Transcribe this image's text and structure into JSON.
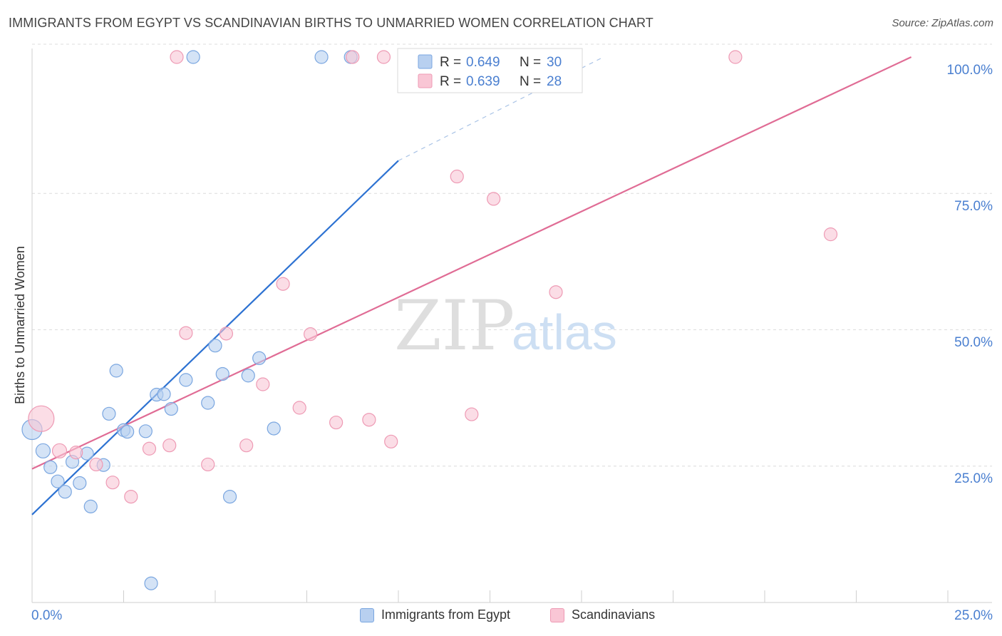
{
  "title": "IMMIGRANTS FROM EGYPT VS SCANDINAVIAN BIRTHS TO UNMARRIED WOMEN CORRELATION CHART",
  "source": "Source: ZipAtlas.com",
  "watermark": {
    "zip": "ZIP",
    "atlas": "atlas"
  },
  "colors": {
    "blue_fill": "#b8d0f0",
    "blue_stroke": "#7aa6e0",
    "blue_line": "#2d72d2",
    "pink_fill": "#f9c6d5",
    "pink_stroke": "#ee9ab4",
    "pink_line": "#e06c95",
    "axis_label": "#4a7fd0",
    "grid": "#dcdcdc"
  },
  "legend_top": [
    {
      "r_label": "R =",
      "r_value": "0.649",
      "n_label": "N =",
      "n_value": "30",
      "color": "blue"
    },
    {
      "r_label": "R =",
      "r_value": "0.639",
      "n_label": "N =",
      "n_value": "28",
      "color": "pink"
    }
  ],
  "legend_bottom": [
    {
      "label": "Immigrants from Egypt",
      "color": "blue"
    },
    {
      "label": "Scandinavians",
      "color": "pink"
    }
  ],
  "chart_data": {
    "type": "scatter",
    "title": "IMMIGRANTS FROM EGYPT VS SCANDINAVIAN BIRTHS TO UNMARRIED WOMEN CORRELATION CHART",
    "xlabel": "",
    "ylabel": "Births to Unmarried Women",
    "xlim": [
      0,
      25
    ],
    "ylim": [
      2,
      102
    ],
    "x_tick_labels": [
      "0.0%",
      "25.0%"
    ],
    "y_ticks": [
      25,
      50,
      75,
      100
    ],
    "y_tick_labels": [
      "25.0%",
      "50.0%",
      "75.0%",
      "100.0%"
    ],
    "grid": true,
    "legend_position": "top-center",
    "series": [
      {
        "name": "Immigrants from Egypt",
        "color": "blue",
        "r": 0.649,
        "n": 30,
        "points": [
          [
            0.0,
            31.7,
            14
          ],
          [
            0.3,
            27.8,
            10
          ],
          [
            0.5,
            24.8,
            9
          ],
          [
            0.7,
            22.2,
            9
          ],
          [
            0.9,
            20.3,
            9
          ],
          [
            1.1,
            25.8,
            9
          ],
          [
            1.3,
            21.9,
            9
          ],
          [
            1.5,
            27.3,
            9
          ],
          [
            1.6,
            17.6,
            9
          ],
          [
            1.95,
            25.2,
            9
          ],
          [
            2.1,
            34.6,
            9
          ],
          [
            2.3,
            42.5,
            9
          ],
          [
            2.5,
            31.6,
            9
          ],
          [
            2.6,
            31.3,
            9
          ],
          [
            3.1,
            31.4,
            9
          ],
          [
            3.4,
            38.1,
            9
          ],
          [
            3.6,
            38.2,
            9
          ],
          [
            3.8,
            35.5,
            9
          ],
          [
            4.2,
            40.8,
            9
          ],
          [
            4.8,
            36.6,
            9
          ],
          [
            5.0,
            47.1,
            9
          ],
          [
            5.2,
            41.9,
            9
          ],
          [
            5.4,
            19.4,
            9
          ],
          [
            5.9,
            41.6,
            9
          ],
          [
            6.2,
            44.8,
            9
          ],
          [
            6.6,
            31.9,
            9
          ],
          [
            4.4,
            100.0,
            9
          ],
          [
            7.9,
            100.0,
            9
          ],
          [
            8.7,
            100.0,
            9
          ],
          [
            3.25,
            3.5,
            9
          ]
        ]
      },
      {
        "name": "Scandinavians",
        "color": "pink",
        "r": 0.639,
        "n": 28,
        "points": [
          [
            0.25,
            33.7,
            18
          ],
          [
            0.75,
            27.8,
            10
          ],
          [
            1.2,
            27.5,
            9
          ],
          [
            1.75,
            25.3,
            9
          ],
          [
            2.2,
            22.0,
            9
          ],
          [
            2.7,
            19.4,
            9
          ],
          [
            3.2,
            28.2,
            9
          ],
          [
            3.75,
            28.8,
            9
          ],
          [
            4.2,
            49.4,
            9
          ],
          [
            4.8,
            25.3,
            9
          ],
          [
            5.3,
            49.3,
            9
          ],
          [
            5.85,
            28.8,
            9
          ],
          [
            6.3,
            40.0,
            9
          ],
          [
            6.85,
            58.4,
            9
          ],
          [
            7.3,
            35.7,
            9
          ],
          [
            7.6,
            49.2,
            9
          ],
          [
            8.3,
            33.0,
            9
          ],
          [
            9.2,
            33.5,
            9
          ],
          [
            9.8,
            29.5,
            9
          ],
          [
            11.6,
            78.1,
            9
          ],
          [
            12.0,
            34.5,
            9
          ],
          [
            12.6,
            74.0,
            9
          ],
          [
            14.3,
            56.9,
            9
          ],
          [
            8.75,
            100.0,
            9
          ],
          [
            9.6,
            100.0,
            9
          ],
          [
            19.2,
            100.0,
            9
          ],
          [
            21.8,
            67.5,
            9
          ],
          [
            3.95,
            100.0,
            9
          ]
        ]
      }
    ],
    "trendlines": [
      {
        "series": "Immigrants from Egypt",
        "x0": 0.0,
        "y0": 16.1,
        "x1": 10.0,
        "y1": 81.0,
        "dash_to_x": 15.6
      },
      {
        "series": "Scandinavians",
        "x0": 0.0,
        "y0": 24.5,
        "x1": 24.0,
        "y1": 102.0
      }
    ]
  }
}
